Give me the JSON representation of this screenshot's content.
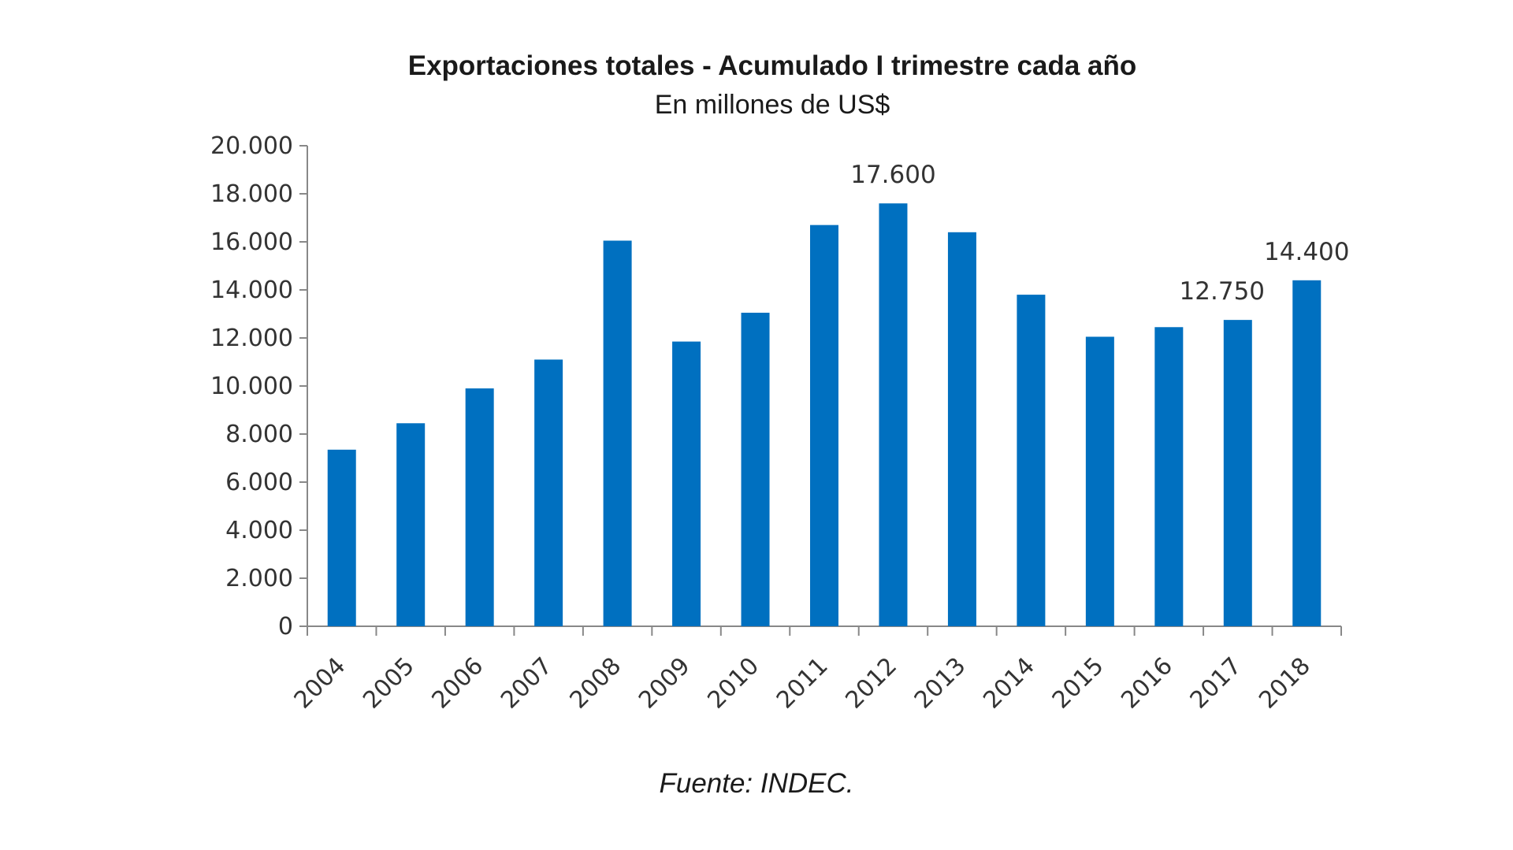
{
  "source": "Fuente: INDEC.",
  "chart_data": {
    "type": "bar",
    "title": "Exportaciones totales - Acumulado I trimestre cada año",
    "subtitle": "En millones de US$",
    "xlabel": "",
    "ylabel": "",
    "categories": [
      "2004",
      "2005",
      "2006",
      "2007",
      "2008",
      "2009",
      "2010",
      "2011",
      "2012",
      "2013",
      "2014",
      "2015",
      "2016",
      "2017",
      "2018"
    ],
    "values": [
      7350,
      8450,
      9900,
      11100,
      16050,
      11850,
      13050,
      16700,
      17600,
      16400,
      13800,
      12050,
      12450,
      12750,
      14400
    ],
    "data_labels": [
      {
        "category": "2012",
        "text": "17.600"
      },
      {
        "category": "2017",
        "text": "12.750"
      },
      {
        "category": "2018",
        "text": "14.400"
      }
    ],
    "ylim": [
      0,
      20000
    ],
    "yticks": [
      0,
      2000,
      4000,
      6000,
      8000,
      10000,
      12000,
      14000,
      16000,
      18000,
      20000
    ],
    "ytick_labels": [
      "0",
      "2.000",
      "4.000",
      "6.000",
      "8.000",
      "10.000",
      "12.000",
      "14.000",
      "16.000",
      "18.000",
      "20.000"
    ],
    "grid": false,
    "legend": "none",
    "bar_color": "#0070C0",
    "axis_color": "#888888"
  }
}
